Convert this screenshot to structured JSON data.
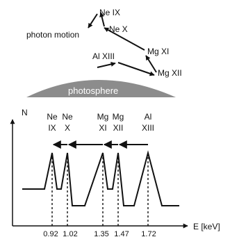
{
  "top_panel": {
    "photon_motion_label": "photon motion",
    "photosphere_label": "photosphere",
    "ion_labels": [
      {
        "id": "ne-ix",
        "text": "Ne IX"
      },
      {
        "id": "ne-x",
        "text": "Ne X"
      },
      {
        "id": "mg-xi",
        "text": "Mg XI"
      },
      {
        "id": "mg-xii",
        "text": "Mg XII"
      },
      {
        "id": "al-xiii",
        "text": "Al XIII"
      }
    ]
  },
  "spectrum": {
    "y_axis_label": "N",
    "x_axis_label": "E [keV]",
    "lines": [
      {
        "element": "Ne",
        "ion": "IX",
        "energy": "0.92"
      },
      {
        "element": "Ne",
        "ion": "X",
        "energy": "1.02"
      },
      {
        "element": "Mg",
        "ion": "XI",
        "energy": "1.35"
      },
      {
        "element": "Mg",
        "ion": "XII",
        "energy": "1.47"
      },
      {
        "element": "Al",
        "ion": "XIII",
        "energy": "1.72"
      }
    ]
  },
  "colors": {
    "photosphere": "#8c8c8c",
    "ink": "#111111"
  }
}
